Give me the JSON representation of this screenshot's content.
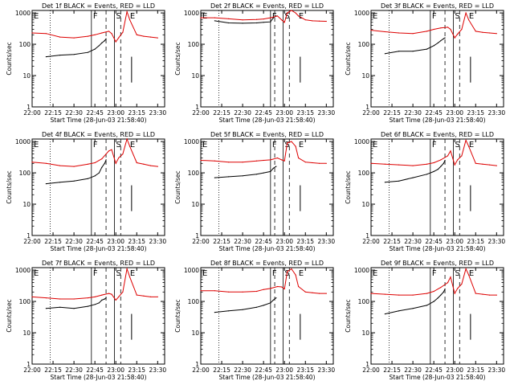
{
  "x_ticks": [
    "22:00",
    "22:15",
    "22:30",
    "22:45",
    "23:00",
    "23:15",
    "23:30"
  ],
  "y_ticks": [
    "1",
    "10",
    "100",
    "1000"
  ],
  "y_label": "Counts/sec",
  "x_label": "Start Time (28-Jun-03 21:58:40)",
  "markers": [
    "E",
    "F",
    "S",
    "E"
  ],
  "colors": {
    "events": "#000000",
    "lld": "#dd0000"
  },
  "chart_data": [
    {
      "type": "line",
      "title": "Det 1f BLACK = Events, RED = LLD",
      "x_unit": "minutes after 22:00",
      "xlim": [
        0,
        95
      ],
      "ylim": [
        1,
        1200
      ],
      "y_scale": "log",
      "marker_times": [
        0,
        42.5,
        59,
        69
      ],
      "dotted_line": 13,
      "dashed_lines": [
        53,
        63.5
      ],
      "series": [
        {
          "name": "Events",
          "color": "black",
          "x": [
            10,
            20,
            30,
            40,
            45,
            48,
            50,
            52,
            53
          ],
          "values": [
            40,
            45,
            47,
            55,
            70,
            90,
            110,
            130,
            150
          ]
        },
        {
          "name": "LLD",
          "color": "red",
          "x": [
            0,
            10,
            20,
            30,
            40,
            45,
            50,
            55,
            57,
            60,
            62,
            65,
            68,
            70,
            75,
            80,
            85,
            90
          ],
          "values": [
            230,
            220,
            170,
            160,
            180,
            200,
            230,
            260,
            220,
            120,
            160,
            240,
            1100,
            600,
            200,
            180,
            170,
            160
          ]
        }
      ]
    },
    {
      "type": "line",
      "title": "Det 2f BLACK = Events, RED = LLD",
      "x_unit": "minutes after 22:00",
      "xlim": [
        0,
        95
      ],
      "ylim": [
        1,
        1200
      ],
      "y_scale": "log",
      "marker_times": [
        0,
        50,
        59,
        69
      ],
      "dotted_line": 13,
      "dashed_lines": [
        53,
        63.5
      ],
      "series": [
        {
          "name": "Events",
          "color": "black",
          "x": [
            10,
            20,
            30,
            40,
            45,
            50,
            52,
            54
          ],
          "values": [
            560,
            480,
            470,
            480,
            500,
            520,
            700,
            800
          ]
        },
        {
          "name": "LLD",
          "color": "red",
          "x": [
            0,
            10,
            20,
            30,
            40,
            45,
            50,
            55,
            58,
            60,
            62,
            65,
            68,
            70,
            75,
            80,
            85,
            90
          ],
          "values": [
            700,
            700,
            650,
            600,
            620,
            640,
            700,
            800,
            600,
            500,
            1000,
            1200,
            1000,
            800,
            600,
            560,
            550,
            540
          ]
        }
      ]
    },
    {
      "type": "line",
      "title": "Det 3f BLACK = Events, RED = LLD",
      "x_unit": "minutes after 22:00",
      "xlim": [
        0,
        95
      ],
      "ylim": [
        1,
        1200
      ],
      "y_scale": "log",
      "marker_times": [
        0,
        42.5,
        59,
        69
      ],
      "dotted_line": 13,
      "dashed_lines": [
        53,
        63.5
      ],
      "series": [
        {
          "name": "Events",
          "color": "black",
          "x": [
            10,
            20,
            30,
            40,
            45,
            48,
            50,
            52,
            53
          ],
          "values": [
            50,
            60,
            60,
            70,
            90,
            110,
            130,
            150,
            160
          ]
        },
        {
          "name": "LLD",
          "color": "red",
          "x": [
            0,
            10,
            20,
            30,
            40,
            45,
            50,
            55,
            57,
            60,
            62,
            65,
            68,
            70,
            75,
            80,
            85,
            90
          ],
          "values": [
            280,
            250,
            230,
            220,
            260,
            300,
            330,
            350,
            300,
            160,
            210,
            300,
            1000,
            600,
            260,
            240,
            230,
            220
          ]
        }
      ]
    },
    {
      "type": "line",
      "title": "Det 4f BLACK = Events, RED = LLD",
      "x_unit": "minutes after 22:00",
      "xlim": [
        0,
        95
      ],
      "ylim": [
        1,
        1200
      ],
      "y_scale": "log",
      "marker_times": [
        0,
        42.5,
        59,
        69
      ],
      "dotted_line": 13,
      "dashed_lines": [
        53,
        63.5
      ],
      "series": [
        {
          "name": "Events",
          "color": "black",
          "x": [
            10,
            20,
            30,
            40,
            45,
            48,
            50,
            52,
            53
          ],
          "values": [
            45,
            50,
            55,
            65,
            80,
            100,
            150,
            200,
            260
          ]
        },
        {
          "name": "LLD",
          "color": "red",
          "x": [
            0,
            10,
            20,
            30,
            40,
            45,
            50,
            55,
            57,
            60,
            62,
            65,
            68,
            70,
            75,
            80,
            85,
            90
          ],
          "values": [
            220,
            200,
            170,
            160,
            190,
            210,
            280,
            500,
            550,
            200,
            300,
            400,
            1200,
            700,
            210,
            190,
            170,
            160
          ]
        }
      ]
    },
    {
      "type": "line",
      "title": "Det 5f BLACK = Events, RED = LLD",
      "x_unit": "minutes after 22:00",
      "xlim": [
        0,
        95
      ],
      "ylim": [
        1,
        1200
      ],
      "y_scale": "log",
      "marker_times": [
        0,
        50,
        59,
        69
      ],
      "dotted_line": 13,
      "dashed_lines": [
        53,
        63.5
      ],
      "series": [
        {
          "name": "Events",
          "color": "black",
          "x": [
            10,
            20,
            30,
            40,
            45,
            50,
            52,
            54
          ],
          "values": [
            70,
            75,
            80,
            90,
            100,
            110,
            140,
            160
          ]
        },
        {
          "name": "LLD",
          "color": "red",
          "x": [
            0,
            10,
            20,
            30,
            40,
            45,
            50,
            55,
            58,
            60,
            62,
            65,
            68,
            70,
            75,
            80,
            85,
            90
          ],
          "values": [
            250,
            240,
            220,
            220,
            240,
            250,
            260,
            300,
            260,
            240,
            900,
            1000,
            700,
            300,
            220,
            210,
            200,
            200
          ]
        }
      ]
    },
    {
      "type": "line",
      "title": "Det 6f BLACK = Events, RED = LLD",
      "x_unit": "minutes after 22:00",
      "xlim": [
        0,
        95
      ],
      "ylim": [
        1,
        1200
      ],
      "y_scale": "log",
      "marker_times": [
        0,
        42.5,
        59,
        69
      ],
      "dotted_line": 13,
      "dashed_lines": [
        53,
        63.5
      ],
      "series": [
        {
          "name": "Events",
          "color": "black",
          "x": [
            10,
            20,
            30,
            40,
            45,
            48,
            50,
            52,
            53
          ],
          "values": [
            50,
            55,
            70,
            90,
            110,
            130,
            160,
            200,
            250
          ]
        },
        {
          "name": "LLD",
          "color": "red",
          "x": [
            0,
            10,
            20,
            30,
            40,
            45,
            50,
            55,
            57,
            60,
            62,
            65,
            68,
            70,
            75,
            80,
            85,
            90
          ],
          "values": [
            200,
            190,
            180,
            170,
            190,
            210,
            260,
            350,
            500,
            180,
            260,
            350,
            1100,
            700,
            200,
            190,
            180,
            170
          ]
        }
      ]
    },
    {
      "type": "line",
      "title": "Det 7f BLACK = Events, RED = LLD",
      "x_unit": "minutes after 22:00",
      "xlim": [
        0,
        95
      ],
      "ylim": [
        1,
        1200
      ],
      "y_scale": "log",
      "marker_times": [
        0,
        42.5,
        59,
        69
      ],
      "dotted_line": 13,
      "dashed_lines": [
        53,
        63.5
      ],
      "series": [
        {
          "name": "Events",
          "color": "black",
          "x": [
            10,
            20,
            30,
            40,
            45,
            48,
            50,
            52,
            53
          ],
          "values": [
            60,
            65,
            60,
            70,
            80,
            90,
            110,
            120,
            130
          ]
        },
        {
          "name": "LLD",
          "color": "red",
          "x": [
            0,
            10,
            20,
            30,
            40,
            45,
            50,
            55,
            57,
            60,
            62,
            65,
            68,
            70,
            75,
            80,
            85,
            90
          ],
          "values": [
            140,
            130,
            120,
            120,
            130,
            140,
            160,
            180,
            170,
            110,
            140,
            200,
            1100,
            600,
            160,
            150,
            140,
            140
          ]
        }
      ]
    },
    {
      "type": "line",
      "title": "Det 8f BLACK = Events, RED = LLD",
      "x_unit": "minutes after 22:00",
      "xlim": [
        0,
        95
      ],
      "ylim": [
        1,
        1200
      ],
      "y_scale": "log",
      "marker_times": [
        0,
        50,
        59,
        69
      ],
      "dotted_line": 13,
      "dashed_lines": [
        53,
        63.5
      ],
      "series": [
        {
          "name": "Events",
          "color": "black",
          "x": [
            10,
            20,
            30,
            40,
            45,
            50,
            52,
            54
          ],
          "values": [
            45,
            50,
            55,
            65,
            75,
            90,
            110,
            130
          ]
        },
        {
          "name": "LLD",
          "color": "red",
          "x": [
            0,
            10,
            20,
            30,
            40,
            45,
            50,
            55,
            58,
            60,
            62,
            65,
            68,
            70,
            75,
            80,
            85,
            90
          ],
          "values": [
            220,
            220,
            200,
            200,
            210,
            240,
            260,
            300,
            290,
            250,
            900,
            1100,
            700,
            300,
            200,
            190,
            180,
            180
          ]
        }
      ]
    },
    {
      "type": "line",
      "title": "Det 9f BLACK = Events, RED = LLD",
      "x_unit": "minutes after 22:00",
      "xlim": [
        0,
        95
      ],
      "ylim": [
        1,
        1200
      ],
      "y_scale": "log",
      "marker_times": [
        0,
        42.5,
        59,
        69
      ],
      "dotted_line": 13,
      "dashed_lines": [
        53,
        63.5
      ],
      "series": [
        {
          "name": "Events",
          "color": "black",
          "x": [
            10,
            20,
            30,
            40,
            45,
            48,
            50,
            52,
            53
          ],
          "values": [
            40,
            50,
            60,
            75,
            100,
            130,
            160,
            200,
            250
          ]
        },
        {
          "name": "LLD",
          "color": "red",
          "x": [
            0,
            10,
            20,
            30,
            40,
            45,
            50,
            55,
            57,
            60,
            62,
            65,
            68,
            70,
            75,
            80,
            85,
            90
          ],
          "values": [
            180,
            170,
            160,
            160,
            180,
            210,
            280,
            400,
            600,
            180,
            260,
            360,
            1100,
            700,
            180,
            170,
            160,
            160
          ]
        }
      ]
    }
  ]
}
